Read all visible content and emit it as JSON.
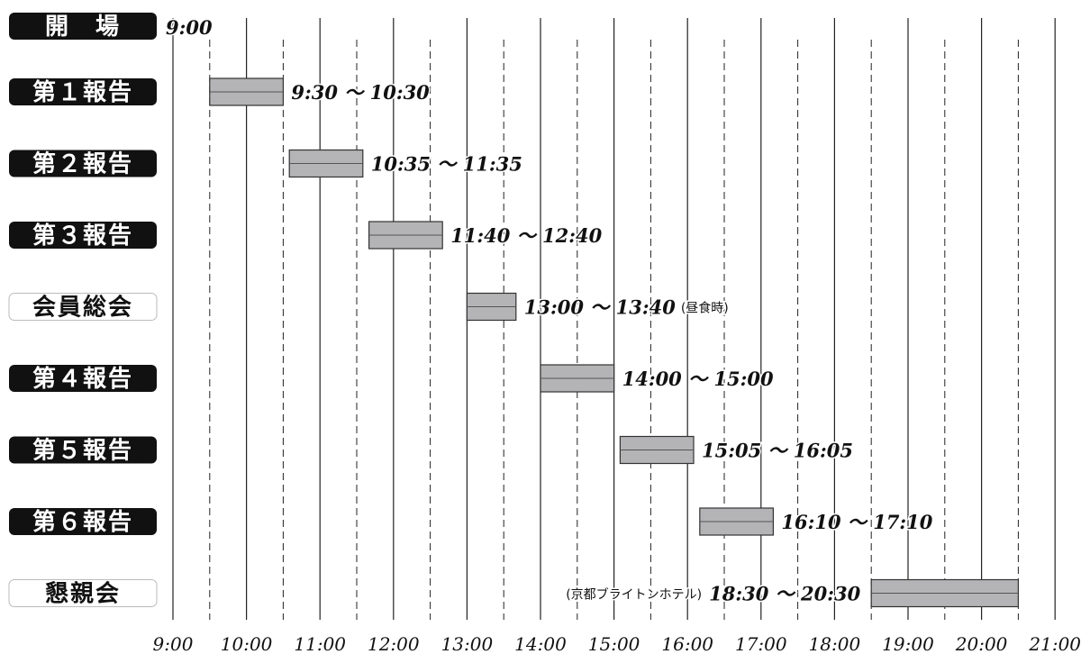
{
  "chart_data": {
    "type": "gantt",
    "title": "開　場",
    "opening_time": "9:00",
    "x_start_hour": 9,
    "x_end_hour": 21,
    "ticks": [
      "9:00",
      "10:00",
      "11:00",
      "12:00",
      "13:00",
      "14:00",
      "15:00",
      "16:00",
      "17:00",
      "18:00",
      "19:00",
      "20:00",
      "21:00"
    ],
    "grid": {
      "hourly": "solid",
      "half_hourly": "dashed"
    },
    "colors": {
      "bar_fill": "#b4b4b6",
      "bar_stroke": "#333333",
      "label_dark": "#111111",
      "label_light": "#ffffff"
    },
    "sessions": [
      {
        "label": "第１報告",
        "style": "dark",
        "start": 9.5,
        "end": 10.5,
        "range": "9:30 〜 10:30",
        "note": "",
        "note_before": ""
      },
      {
        "label": "第２報告",
        "style": "dark",
        "start": 10.5833,
        "end": 11.5833,
        "range": "10:35 〜 11:35",
        "note": "",
        "note_before": ""
      },
      {
        "label": "第３報告",
        "style": "dark",
        "start": 11.6667,
        "end": 12.6667,
        "range": "11:40 〜 12:40",
        "note": "",
        "note_before": ""
      },
      {
        "label": "会員総会",
        "style": "light",
        "start": 13.0,
        "end": 13.6667,
        "range": "13:00 〜 13:40",
        "note": "(昼食時)",
        "note_before": ""
      },
      {
        "label": "第４報告",
        "style": "dark",
        "start": 14.0,
        "end": 15.0,
        "range": "14:00 〜 15:00",
        "note": "",
        "note_before": ""
      },
      {
        "label": "第５報告",
        "style": "dark",
        "start": 15.0833,
        "end": 16.0833,
        "range": "15:05 〜 16:05",
        "note": "",
        "note_before": ""
      },
      {
        "label": "第６報告",
        "style": "dark",
        "start": 16.1667,
        "end": 17.1667,
        "range": "16:10 〜 17:10",
        "note": "",
        "note_before": ""
      },
      {
        "label": "懇親会",
        "style": "light",
        "start": 18.5,
        "end": 20.5,
        "range": "18:30 〜 20:30",
        "note": "",
        "note_before": "(京都ブライトンホテル)"
      }
    ]
  }
}
